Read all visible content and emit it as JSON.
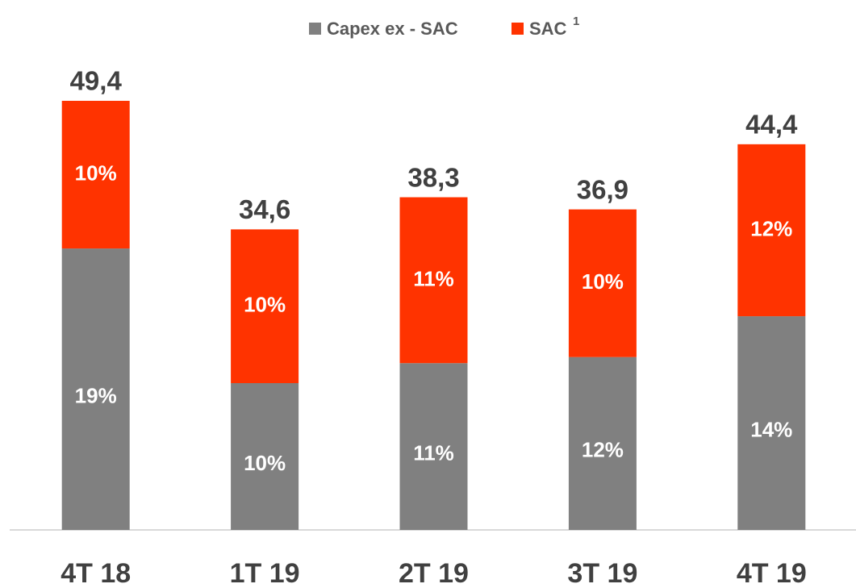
{
  "chart_data": {
    "type": "stacked_bar",
    "categories": [
      "4T 18",
      "1T 19",
      "2T 19",
      "3T 19",
      "4T 19"
    ],
    "series": [
      {
        "name": "Capex ex - SAC",
        "color": "#808080",
        "values": [
          32.4,
          16.9,
          19.2,
          19.9,
          24.6
        ],
        "share_labels": [
          "19%",
          "10%",
          "11%",
          "12%",
          "14%"
        ]
      },
      {
        "name": "SAC",
        "name_superscript": "1",
        "color": "#ff3300",
        "values": [
          17.0,
          17.7,
          19.1,
          17.0,
          19.8
        ],
        "share_labels": [
          "10%",
          "10%",
          "11%",
          "10%",
          "12%"
        ]
      }
    ],
    "totals": {
      "values": [
        49.4,
        34.6,
        38.3,
        36.9,
        44.4
      ],
      "value_labels": [
        "49,4",
        "34,6",
        "38,3",
        "36,9",
        "44,4"
      ]
    },
    "legend": "top"
  }
}
